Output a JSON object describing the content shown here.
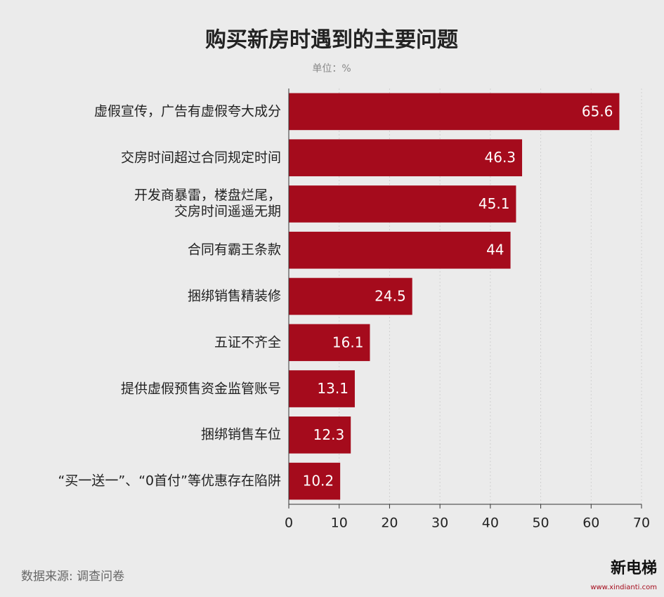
{
  "chart_data": {
    "type": "bar",
    "orientation": "horizontal",
    "title": "购买新房时遇到的主要问题",
    "subtitle": "单位：%",
    "source": "数据来源: 调查问卷",
    "logo": {
      "name": "新电梯",
      "url": "www.xindianti.com"
    },
    "categories": [
      "虚假宣传，广告有虚假夸大成分",
      "交房时间超过合同规定时间",
      "开发商暴雷，楼盘烂尾，\n交房时间遥遥无期",
      "合同有霸王条款",
      "捆绑销售精装修",
      "五证不齐全",
      "提供虚假预售资金监管账号",
      "捆绑销售车位",
      "“买一送一”、“0首付”等优惠存在陷阱"
    ],
    "values": [
      65.6,
      46.3,
      45.1,
      44,
      24.5,
      16.1,
      13.1,
      12.3,
      10.2
    ],
    "color": "#a50b1c",
    "xlim": [
      0,
      70
    ],
    "xticks": [
      0,
      10,
      20,
      30,
      40,
      50,
      60,
      70
    ],
    "grid": true
  }
}
